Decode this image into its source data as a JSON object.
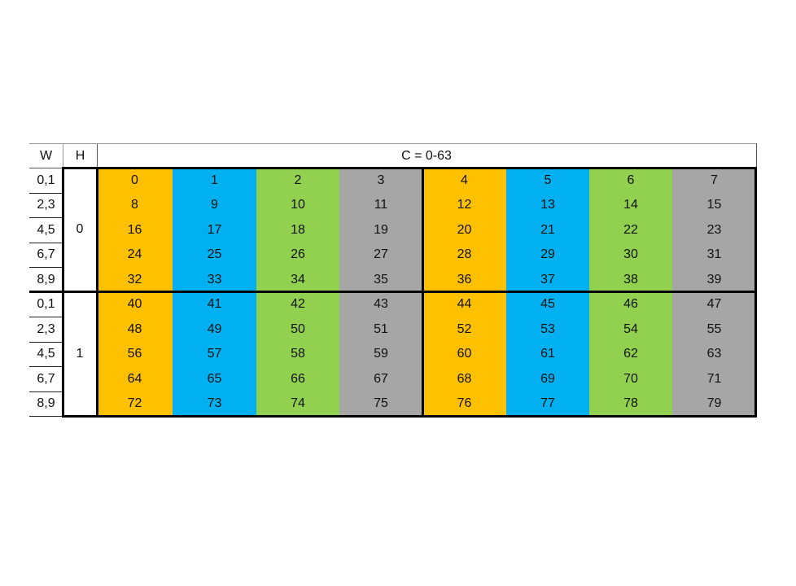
{
  "header": {
    "w_label": "W",
    "h_label": "H",
    "c_label": "C = 0-63"
  },
  "w_labels": [
    "0,1",
    "2,3",
    "4,5",
    "6,7",
    "8,9",
    "0,1",
    "2,3",
    "4,5",
    "6,7",
    "8,9"
  ],
  "h_labels": [
    "0",
    "1"
  ],
  "column_colors": [
    "#FFC000",
    "#00B0F0",
    "#92D050",
    "#A6A6A6",
    "#FFC000",
    "#00B0F0",
    "#92D050",
    "#A6A6A6"
  ],
  "cells": [
    [
      "0",
      "1",
      "2",
      "3",
      "4",
      "5",
      "6",
      "7"
    ],
    [
      "8",
      "9",
      "10",
      "11",
      "12",
      "13",
      "14",
      "15"
    ],
    [
      "16",
      "17",
      "18",
      "19",
      "20",
      "21",
      "22",
      "23"
    ],
    [
      "24",
      "25",
      "26",
      "27",
      "28",
      "29",
      "30",
      "31"
    ],
    [
      "32",
      "33",
      "34",
      "35",
      "36",
      "37",
      "38",
      "39"
    ],
    [
      "40",
      "41",
      "42",
      "43",
      "44",
      "45",
      "46",
      "47"
    ],
    [
      "48",
      "49",
      "50",
      "51",
      "52",
      "53",
      "54",
      "55"
    ],
    [
      "56",
      "57",
      "58",
      "59",
      "60",
      "61",
      "62",
      "63"
    ],
    [
      "64",
      "65",
      "66",
      "67",
      "68",
      "69",
      "70",
      "71"
    ],
    [
      "72",
      "73",
      "74",
      "75",
      "76",
      "77",
      "78",
      "79"
    ]
  ]
}
